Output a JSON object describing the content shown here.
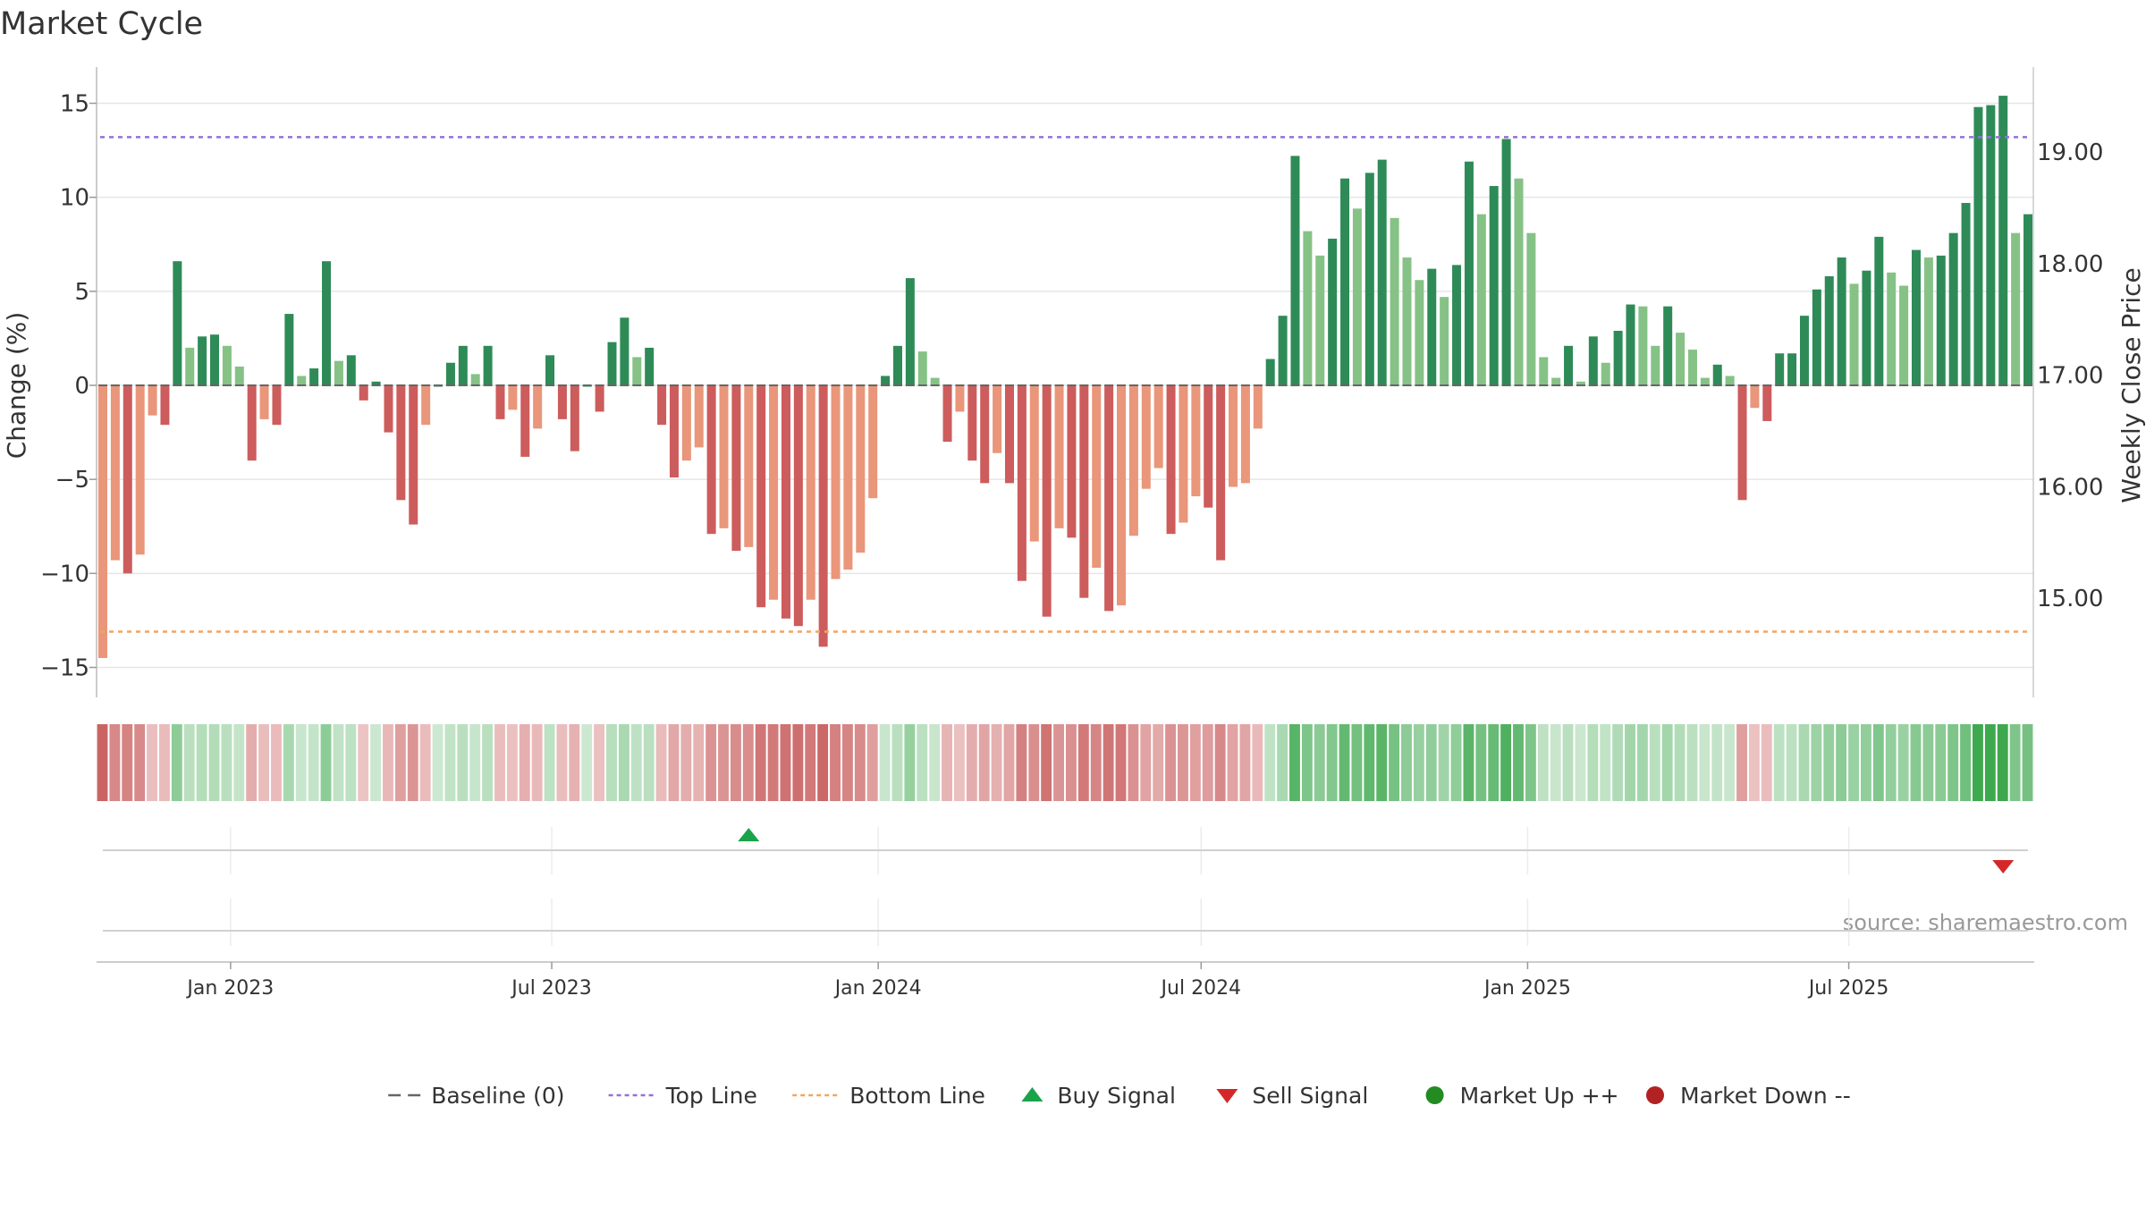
{
  "chart_data": {
    "type": "bar",
    "title": "Market Cycle",
    "ylabel": "Change (%)",
    "y2label": "Weekly Close Price",
    "ylim": [
      -16.5,
      17
    ],
    "yticks": [
      15,
      10,
      5,
      0,
      -5,
      -10,
      -15
    ],
    "ytick_labels": [
      "15",
      "10",
      "5",
      "0",
      "−5",
      "−10",
      "−15"
    ],
    "y2lim": [
      14.41,
      19.82
    ],
    "y2ticks": [
      19.0,
      18.0,
      17.0,
      16.0,
      15.0
    ],
    "y2tick_labels": [
      "19.00",
      "18.00",
      "17.00",
      "16.00",
      "15.00"
    ],
    "x_start": "2022-10-21",
    "x_end": "2025-10-10",
    "period_days": 7,
    "xticks": [
      "2023-01-01",
      "2023-07-01",
      "2024-01-01",
      "2024-07-01",
      "2025-01-01",
      "2025-07-01"
    ],
    "xtick_labels": [
      "Jan 2023",
      "Jul 2023",
      "Jan 2024",
      "Jul 2024",
      "Jan 2025",
      "Jul 2025"
    ],
    "grid": true,
    "top_line": 13.2,
    "bottom_line": -13.1,
    "values": [
      -14.5,
      -9.3,
      -10.0,
      -9.0,
      -1.6,
      -2.1,
      6.6,
      2.0,
      2.6,
      2.7,
      2.1,
      1.0,
      -4.0,
      -1.8,
      -2.1,
      3.8,
      0.5,
      0.9,
      6.6,
      1.3,
      1.6,
      -0.8,
      0.2,
      -2.5,
      -6.1,
      -7.4,
      -2.1,
      0.0,
      1.2,
      2.1,
      0.6,
      2.1,
      -1.8,
      -1.3,
      -3.8,
      -2.3,
      1.6,
      -1.8,
      -3.5,
      0.0,
      -1.4,
      2.3,
      3.6,
      1.5,
      2.0,
      -2.1,
      -4.9,
      -4.0,
      -3.3,
      -7.9,
      -7.6,
      -8.8,
      -8.6,
      -11.8,
      -11.4,
      -12.4,
      -12.8,
      -11.4,
      -13.9,
      -10.3,
      -9.8,
      -8.9,
      -6.0,
      0.5,
      2.1,
      5.7,
      1.8,
      0.4,
      -3.0,
      -1.4,
      -4.0,
      -5.2,
      -3.6,
      -5.2,
      -10.4,
      -8.3,
      -12.3,
      -7.6,
      -8.1,
      -11.3,
      -9.7,
      -12.0,
      -11.7,
      -8.0,
      -5.5,
      -4.4,
      -7.9,
      -7.3,
      -5.9,
      -6.5,
      -9.3,
      -5.4,
      -5.2,
      -2.3,
      1.4,
      3.7,
      12.2,
      8.2,
      6.9,
      7.8,
      11.0,
      9.4,
      11.3,
      12.0,
      8.9,
      6.8,
      5.6,
      6.2,
      4.7,
      6.4,
      11.9,
      9.1,
      10.6,
      13.1,
      11.0,
      8.1,
      1.5,
      0.4,
      2.1,
      0.2,
      2.6,
      1.2,
      2.9,
      4.3,
      4.2,
      2.1,
      4.2,
      2.8,
      1.9,
      0.4,
      1.1,
      0.5,
      -6.1,
      -1.2,
      -1.9,
      1.7,
      1.7,
      3.7,
      5.1,
      5.8,
      6.8,
      5.4,
      6.1,
      7.9,
      6.0,
      5.3,
      7.2,
      6.8,
      6.9,
      8.1,
      9.7,
      14.8,
      14.9,
      15.4,
      8.1,
      9.1
    ],
    "buy_signals": [
      "2023-10-20"
    ],
    "sell_signals": [
      "2025-09-26"
    ],
    "market_up_signals": [],
    "market_down_signals": [],
    "colors": {
      "bar_up_strong": "#2e8b57",
      "bar_up_weak": "#86c286",
      "bar_down_strong": "#cd5c5c",
      "bar_down_weak": "#e9967a",
      "top_line": "#9370db",
      "bottom_line": "#f4a460",
      "buy": "#1aa34a",
      "sell": "#d62728",
      "market_up": "#228b22",
      "market_down": "#b22222",
      "baseline": "#666666"
    },
    "annotation": "source: sharemaestro.com",
    "legend_position": "bottom",
    "legend": [
      {
        "label": "Baseline (0)",
        "marker": "dash-line",
        "color": "#666666"
      },
      {
        "label": "Top Line",
        "marker": "dotted-line",
        "color": "#9370db"
      },
      {
        "label": "Bottom Line",
        "marker": "dotted-line",
        "color": "#f4a460"
      },
      {
        "label": "Buy Signal",
        "marker": "triangle-up",
        "color": "#1aa34a"
      },
      {
        "label": "Sell Signal",
        "marker": "triangle-down",
        "color": "#d62728"
      },
      {
        "label": "Market Up ++",
        "marker": "circle",
        "color": "#228b22"
      },
      {
        "label": "Market Down --",
        "marker": "circle",
        "color": "#b22222"
      }
    ]
  }
}
